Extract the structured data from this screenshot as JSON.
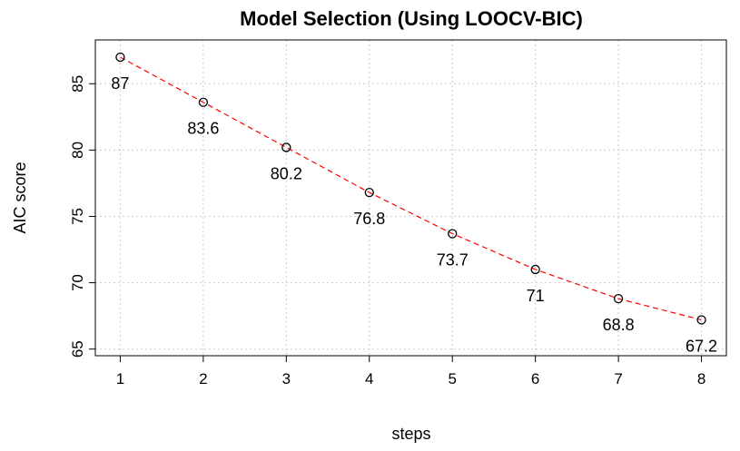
{
  "chart_data": {
    "type": "line",
    "title": "Model Selection (Using LOOCV-BIC)",
    "xlabel": "steps",
    "ylabel": "AIC score",
    "x": [
      1,
      2,
      3,
      4,
      5,
      6,
      7,
      8
    ],
    "values": [
      87,
      83.6,
      80.2,
      76.8,
      73.7,
      71,
      68.8,
      67.2
    ],
    "data_labels": [
      "87",
      "83.6",
      "80.2",
      "76.8",
      "73.7",
      "71",
      "68.8",
      "67.2"
    ],
    "xticks": [
      "1",
      "2",
      "3",
      "4",
      "5",
      "6",
      "7",
      "8"
    ],
    "yticks": [
      "65",
      "70",
      "75",
      "80",
      "85"
    ],
    "xlim": [
      0.7,
      8.3
    ],
    "ylim": [
      64.5,
      88.3
    ],
    "grid": true,
    "line_color": "#ff0000",
    "line_style": "dashed",
    "marker": "open-circle"
  }
}
